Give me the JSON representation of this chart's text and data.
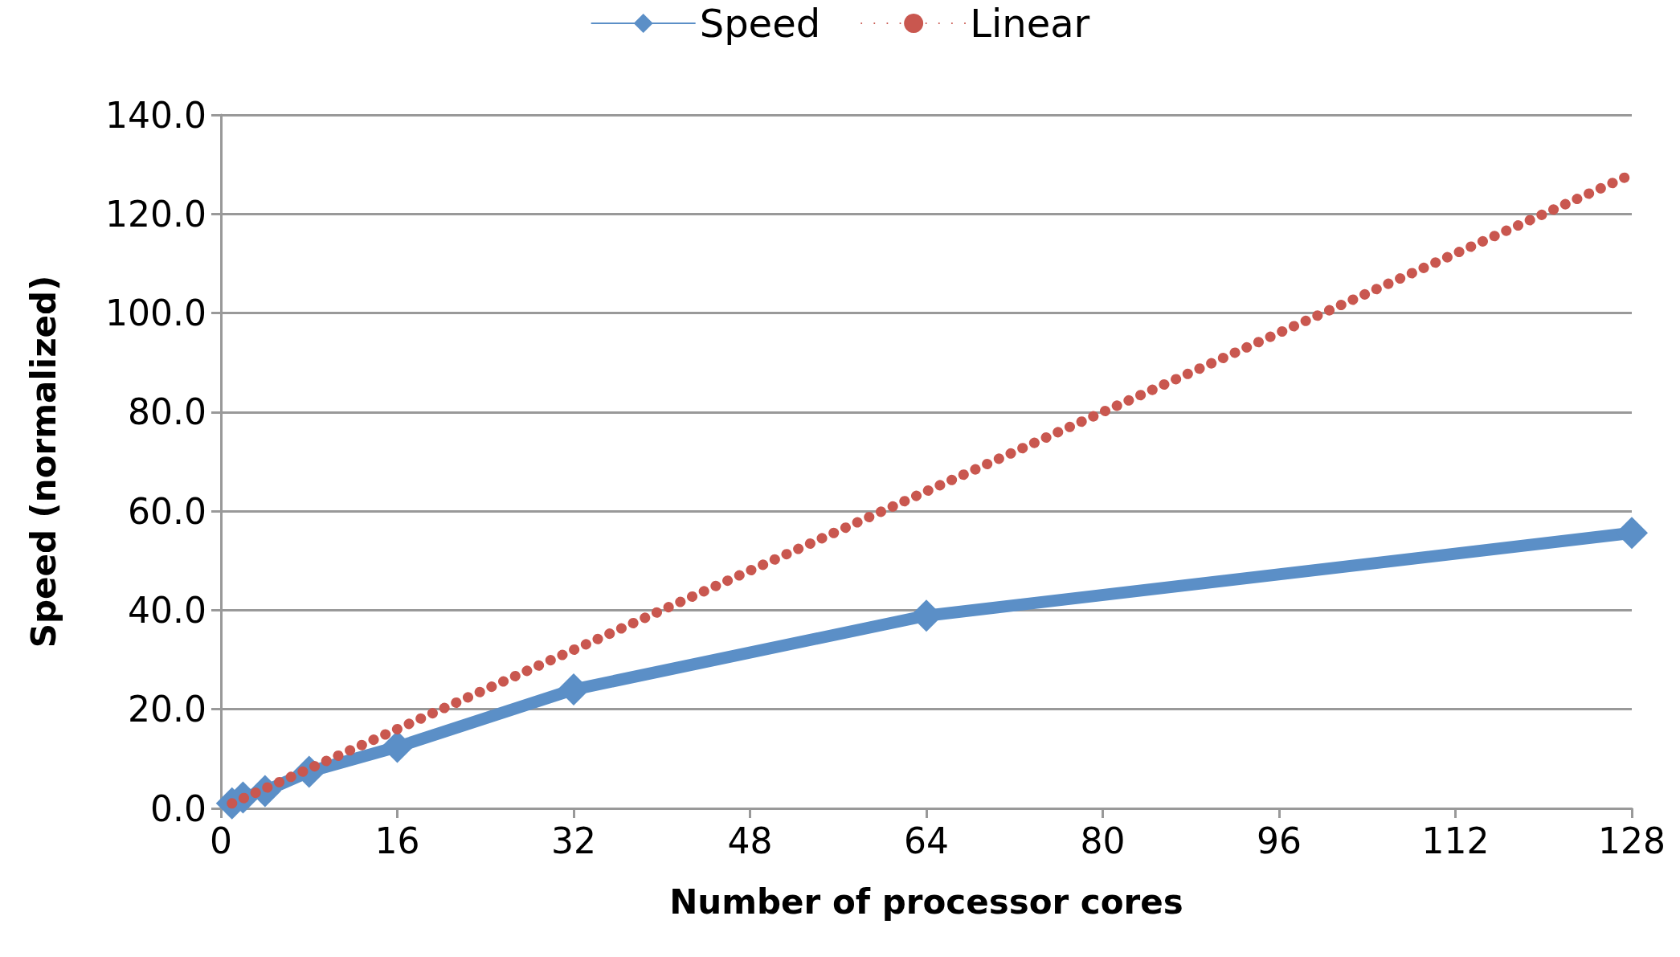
{
  "chart_data": {
    "type": "line",
    "xlabel": "Number of processor cores",
    "ylabel": "Speed (normalized)",
    "xlim": [
      0,
      128
    ],
    "xticks": [
      0,
      16,
      32,
      48,
      64,
      80,
      96,
      112,
      128
    ],
    "ylim": [
      0,
      140
    ],
    "yticks": [
      {
        "value": 0,
        "label": "0.0"
      },
      {
        "value": 20,
        "label": "20.0"
      },
      {
        "value": 40,
        "label": "40.0"
      },
      {
        "value": 60,
        "label": "60.0"
      },
      {
        "value": 80,
        "label": "80.0"
      },
      {
        "value": 100,
        "label": "100.0"
      },
      {
        "value": 120,
        "label": "120.0"
      },
      {
        "value": 140,
        "label": "140.0"
      }
    ],
    "grid": "y",
    "legend": "top",
    "series": [
      {
        "name": "Speed",
        "color": "#5b8fc7",
        "marker": "diamond",
        "line_style": "solid",
        "x": [
          1,
          2,
          4,
          8,
          16,
          32,
          64,
          128
        ],
        "values": [
          1,
          2.2,
          3.5,
          7.4,
          12.4,
          24,
          38.9,
          55.6
        ]
      },
      {
        "name": "Linear",
        "color": "#c9574f",
        "marker": "none",
        "line_style": "dotted",
        "x": [
          1,
          128
        ],
        "values": [
          1,
          128
        ]
      }
    ]
  }
}
